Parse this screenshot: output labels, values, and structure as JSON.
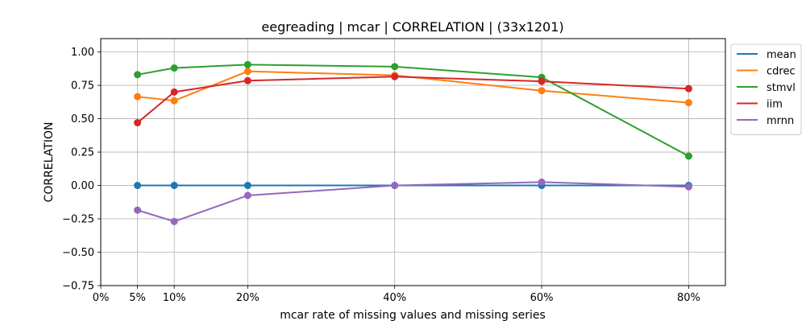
{
  "chart_data": {
    "type": "line",
    "title": "eegreading | mcar | CORRELATION | (33x1201)",
    "xlabel": "mcar rate of missing values and missing series",
    "ylabel": "CORRELATION",
    "x": [
      5,
      10,
      20,
      40,
      60,
      80
    ],
    "x_tick_values": [
      0,
      5,
      10,
      20,
      40,
      60,
      80
    ],
    "x_tick_labels": [
      "0%",
      "5%",
      "10%",
      "20%",
      "40%",
      "60%",
      "80%"
    ],
    "xlim": [
      0,
      85
    ],
    "ylim": [
      -0.75,
      1.1
    ],
    "y_tick_values": [
      -0.75,
      -0.5,
      -0.25,
      0.0,
      0.25,
      0.5,
      0.75,
      1.0
    ],
    "y_tick_labels": [
      "−0.75",
      "−0.50",
      "−0.25",
      "0.00",
      "0.25",
      "0.50",
      "0.75",
      "1.00"
    ],
    "grid": true,
    "legend_position": "outside-top-right",
    "series": [
      {
        "name": "mean",
        "color": "#1f77b4",
        "values": [
          0.0,
          0.0,
          0.0,
          0.0,
          0.0,
          0.0
        ]
      },
      {
        "name": "cdrec",
        "color": "#ff7f0e",
        "values": [
          0.665,
          0.635,
          0.855,
          0.825,
          0.71,
          0.62
        ]
      },
      {
        "name": "stmvl",
        "color": "#2ca02c",
        "values": [
          0.83,
          0.88,
          0.905,
          0.89,
          0.81,
          0.22
        ]
      },
      {
        "name": "iim",
        "color": "#d62728",
        "values": [
          0.47,
          0.7,
          0.785,
          0.815,
          0.78,
          0.725
        ]
      },
      {
        "name": "mrnn",
        "color": "#9467bd",
        "values": [
          -0.185,
          -0.27,
          -0.075,
          0.0,
          0.025,
          -0.01
        ]
      }
    ]
  }
}
